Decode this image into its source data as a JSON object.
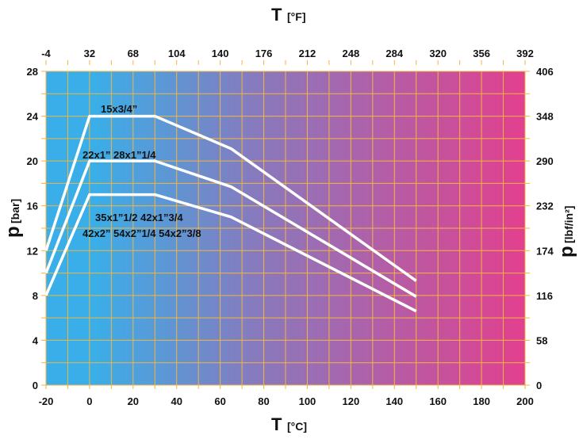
{
  "chart_data": {
    "type": "line",
    "x_bottom": {
      "label_main": "T",
      "label_unit": "[°C]",
      "range": [
        -20,
        200
      ],
      "ticks": [
        "-20",
        "0",
        "20",
        "40",
        "60",
        "80",
        "100",
        "120",
        "140",
        "160",
        "180",
        "200"
      ]
    },
    "x_top": {
      "label_main": "T",
      "label_unit": "[°F]",
      "ticks": [
        "-4",
        "32",
        "68",
        "104",
        "140",
        "176",
        "212",
        "248",
        "284",
        "320",
        "356",
        "392"
      ]
    },
    "y_left": {
      "label_main": "p",
      "label_unit": "[bar]",
      "range": [
        0,
        28
      ],
      "ticks": [
        "0",
        "4",
        "8",
        "12",
        "16",
        "20",
        "24",
        "28"
      ]
    },
    "y_right": {
      "label_main": "p",
      "label_unit": "[lbf/in²]",
      "ticks": [
        "0",
        "58",
        "116",
        "174",
        "232",
        "290",
        "348",
        "406"
      ]
    },
    "grid": true,
    "background_gradient": [
      "#3aaee8",
      "#3aaee8",
      "#8a78bc",
      "#e2408e"
    ],
    "line_color": "#ffffff",
    "series": [
      {
        "name": "15x3/4\"",
        "labels": [
          "15x3/4”"
        ],
        "x": [
          -20,
          0,
          30,
          65,
          150
        ],
        "y": [
          12,
          24,
          24,
          21.1,
          9.3
        ]
      },
      {
        "name": "22x1\" 28x1\"1/4",
        "labels": [
          "22x1”  28x1”1/4"
        ],
        "x": [
          -20,
          0,
          30,
          65,
          150
        ],
        "y": [
          10,
          20,
          20,
          17.7,
          7.9
        ]
      },
      {
        "name": "35x1\"1/2 42x1\"3/4 42x2\" 54x2\"1/4 54x2\"3/8",
        "labels": [
          "35x1”1/2   42x1”3/4",
          "42x2” 54x2”1/4 54x2”3/8"
        ],
        "x": [
          -20,
          0,
          30,
          65,
          150
        ],
        "y": [
          8,
          17,
          17,
          15,
          6.6
        ]
      }
    ]
  }
}
